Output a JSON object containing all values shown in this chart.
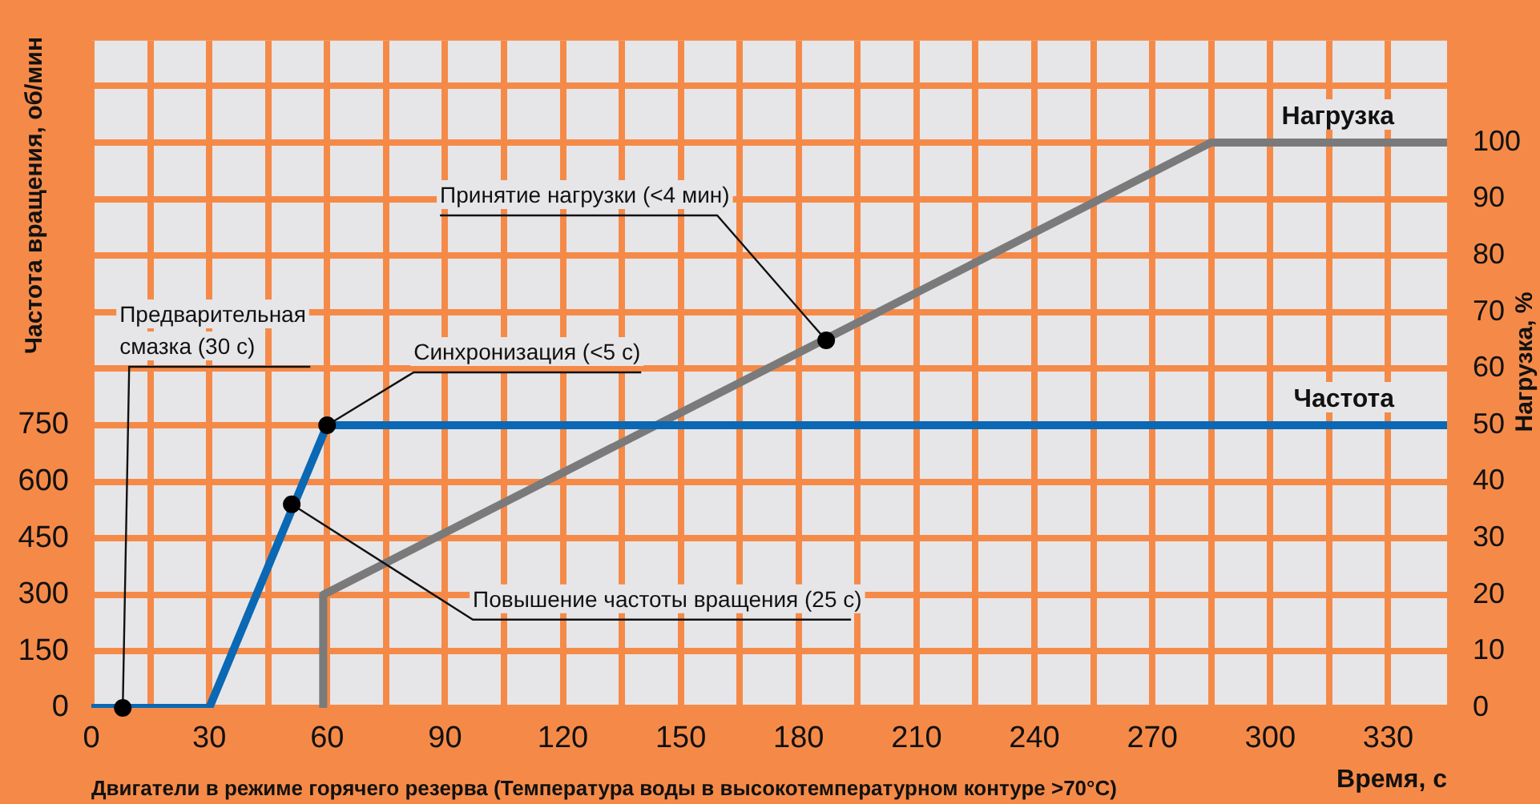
{
  "chart_data": {
    "type": "line",
    "xlabel": "Время, с",
    "ylabel": "Частота вращения, об/мин",
    "y2label": "Нагрузка, %",
    "series": [
      {
        "name": "Частота",
        "color": "#0a68b4",
        "x": [
          0,
          30,
          60,
          345
        ],
        "values": [
          0,
          0,
          750,
          750
        ]
      },
      {
        "name": "Нагрузка",
        "color": "#7a7a7a",
        "axis": "y2",
        "x": [
          59,
          59,
          285,
          345
        ],
        "values": [
          0,
          20,
          100,
          100
        ]
      }
    ],
    "xlim": [
      0,
      345
    ],
    "xticks": [
      0,
      {
        "value": 15,
        "label": null
      },
      30,
      {
        "value": 45,
        "label": null
      },
      60,
      {
        "value": 75,
        "label": null
      },
      90,
      {
        "value": 105,
        "label": null
      },
      120,
      {
        "value": 135,
        "label": null
      },
      150,
      {
        "value": 165,
        "label": null
      },
      180,
      {
        "value": 195,
        "label": null
      },
      210,
      {
        "value": 225,
        "label": null
      },
      240,
      {
        "value": 255,
        "label": null
      },
      270,
      {
        "value": 285,
        "label": null
      },
      300,
      {
        "value": 315,
        "label": null
      },
      330
    ],
    "ylim": [
      0,
      1770
    ],
    "yticks": [
      0,
      150,
      300,
      450,
      600,
      750,
      {
        "value": 900,
        "label": null
      },
      {
        "value": 1050,
        "label": null
      },
      {
        "value": 1200,
        "label": null
      },
      {
        "value": 1350,
        "label": null
      },
      {
        "value": 1500,
        "label": null
      },
      {
        "value": 1650,
        "label": null
      }
    ],
    "y2lim": [
      0,
      118
    ],
    "y2ticks": [
      0,
      10,
      20,
      30,
      40,
      50,
      60,
      70,
      80,
      90,
      100
    ],
    "grid": true,
    "legend": false,
    "marker": "none",
    "line_style": "solid",
    "annotations": [
      {
        "text": "Предварительная\nсмазка (30 с)",
        "x": 8,
        "y": 0
      },
      {
        "text": "Синхронизация (<5 с)",
        "x": 60,
        "y": 750
      },
      {
        "text": "Повышение частоты вращения (25 с)",
        "x": 51,
        "y": 540
      },
      {
        "text": "Принятие нагрузки (<4 мин)",
        "x": 187,
        "y": 975
      },
      "Двигатели в режиме горячего резерва (Температура воды в высокотемпературном контуре >70°C)"
    ]
  }
}
